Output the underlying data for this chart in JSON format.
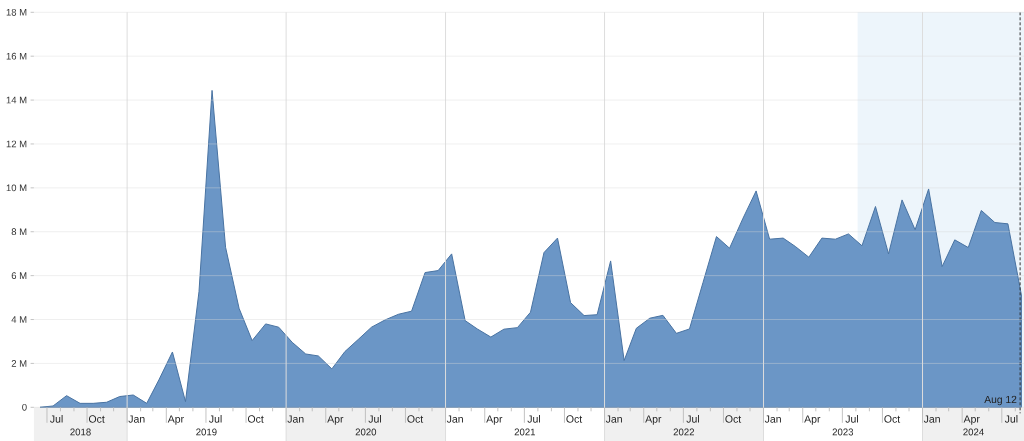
{
  "chart_data": {
    "type": "area",
    "color": "#6b96c6",
    "x": [
      "2018-06-15",
      "2018-07-15",
      "2018-08-15",
      "2018-09-15",
      "2018-10-15",
      "2018-11-15",
      "2018-12-15",
      "2019-01-15",
      "2019-02-15",
      "2019-03-15",
      "2019-04-15",
      "2019-05-15",
      "2019-06-15",
      "2019-07-15",
      "2019-08-15",
      "2019-09-15",
      "2019-10-15",
      "2019-11-15",
      "2019-12-15",
      "2020-01-15",
      "2020-02-15",
      "2020-03-15",
      "2020-04-15",
      "2020-05-15",
      "2020-06-15",
      "2020-07-15",
      "2020-08-15",
      "2020-09-15",
      "2020-10-15",
      "2020-11-15",
      "2020-12-15",
      "2021-01-15",
      "2021-02-15",
      "2021-03-15",
      "2021-04-15",
      "2021-05-15",
      "2021-06-15",
      "2021-07-15",
      "2021-08-15",
      "2021-09-15",
      "2021-10-15",
      "2021-11-15",
      "2021-12-15",
      "2022-01-15",
      "2022-02-15",
      "2022-03-15",
      "2022-04-15",
      "2022-05-15",
      "2022-06-15",
      "2022-07-15",
      "2022-08-15",
      "2022-09-15",
      "2022-10-15",
      "2022-11-15",
      "2022-12-15",
      "2023-01-15",
      "2023-02-15",
      "2023-03-15",
      "2023-04-15",
      "2023-05-15",
      "2023-06-15",
      "2023-07-15",
      "2023-08-15",
      "2023-09-15",
      "2023-10-15",
      "2023-11-15",
      "2023-12-15",
      "2024-01-15",
      "2024-02-15",
      "2024-03-15",
      "2024-04-15",
      "2024-05-15",
      "2024-06-15",
      "2024-07-15",
      "2024-08-15"
    ],
    "values": [
      0,
      0.06,
      0.53,
      0.18,
      0.18,
      0.23,
      0.49,
      0.56,
      0.18,
      1.25,
      2.52,
      0.26,
      5.27,
      14.44,
      7.29,
      4.51,
      3.04,
      3.8,
      3.65,
      2.96,
      2.43,
      2.34,
      1.75,
      2.54,
      3.1,
      3.65,
      3.98,
      4.24,
      4.38,
      6.14,
      6.23,
      6.99,
      3.95,
      3.57,
      3.2,
      3.56,
      3.63,
      4.33,
      7.05,
      7.71,
      4.77,
      4.18,
      4.22,
      6.67,
      2.13,
      3.6,
      4.06,
      4.19,
      3.37,
      3.57,
      5.68,
      7.78,
      7.25,
      8.62,
      9.86,
      7.66,
      7.71,
      7.33,
      6.84,
      7.71,
      7.66,
      7.9,
      7.36,
      9.15,
      6.99,
      9.45,
      8.09,
      9.95,
      6.41,
      7.63,
      7.28,
      8.97,
      8.42,
      8.36,
      5.12
    ],
    "xlim": [
      "2018-06-01",
      "2024-08-21"
    ],
    "xticks": [
      {
        "value": "2018-07-01",
        "label": null
      },
      {
        "value": "2018-07-23",
        "label": "Jul"
      },
      {
        "value": "2018-08-01",
        "label": null
      },
      {
        "value": "2018-09-01",
        "label": null
      },
      {
        "value": "2018-10-01",
        "label": null
      },
      {
        "value": "2018-10-23",
        "label": "Oct"
      },
      {
        "value": "2018-11-01",
        "label": null
      },
      {
        "value": "2018-12-01",
        "label": null
      },
      {
        "value": "2019-01-01",
        "label": null
      },
      {
        "value": "2019-01-23",
        "label": "Jan"
      },
      {
        "value": "2019-02-01",
        "label": null
      },
      {
        "value": "2019-03-01",
        "label": null
      },
      {
        "value": "2019-04-01",
        "label": null
      },
      {
        "value": "2019-04-23",
        "label": "Apr"
      },
      {
        "value": "2019-05-01",
        "label": null
      },
      {
        "value": "2019-06-01",
        "label": null
      },
      {
        "value": "2019-07-01",
        "label": null
      },
      {
        "value": "2019-07-23",
        "label": "Jul"
      },
      {
        "value": "2019-08-01",
        "label": null
      },
      {
        "value": "2019-09-01",
        "label": null
      },
      {
        "value": "2019-10-01",
        "label": null
      },
      {
        "value": "2019-10-23",
        "label": "Oct"
      },
      {
        "value": "2019-11-01",
        "label": null
      },
      {
        "value": "2019-12-01",
        "label": null
      },
      {
        "value": "2020-01-01",
        "label": null
      },
      {
        "value": "2020-01-23",
        "label": "Jan"
      },
      {
        "value": "2020-02-01",
        "label": null
      },
      {
        "value": "2020-03-01",
        "label": null
      },
      {
        "value": "2020-04-01",
        "label": null
      },
      {
        "value": "2020-04-23",
        "label": "Apr"
      },
      {
        "value": "2020-05-01",
        "label": null
      },
      {
        "value": "2020-06-01",
        "label": null
      },
      {
        "value": "2020-07-01",
        "label": null
      },
      {
        "value": "2020-07-23",
        "label": "Jul"
      },
      {
        "value": "2020-08-01",
        "label": null
      },
      {
        "value": "2020-09-01",
        "label": null
      },
      {
        "value": "2020-10-01",
        "label": null
      },
      {
        "value": "2020-10-23",
        "label": "Oct"
      },
      {
        "value": "2020-11-01",
        "label": null
      },
      {
        "value": "2020-12-01",
        "label": null
      },
      {
        "value": "2021-01-01",
        "label": null
      },
      {
        "value": "2021-01-23",
        "label": "Jan"
      },
      {
        "value": "2021-02-01",
        "label": null
      },
      {
        "value": "2021-03-01",
        "label": null
      },
      {
        "value": "2021-04-01",
        "label": null
      },
      {
        "value": "2021-04-23",
        "label": "Apr"
      },
      {
        "value": "2021-05-01",
        "label": null
      },
      {
        "value": "2021-06-01",
        "label": null
      },
      {
        "value": "2021-07-01",
        "label": null
      },
      {
        "value": "2021-07-23",
        "label": "Jul"
      },
      {
        "value": "2021-08-01",
        "label": null
      },
      {
        "value": "2021-09-01",
        "label": null
      },
      {
        "value": "2021-10-01",
        "label": null
      },
      {
        "value": "2021-10-23",
        "label": "Oct"
      },
      {
        "value": "2021-11-01",
        "label": null
      },
      {
        "value": "2021-12-01",
        "label": null
      },
      {
        "value": "2022-01-01",
        "label": null
      },
      {
        "value": "2022-01-23",
        "label": "Jan"
      },
      {
        "value": "2022-02-01",
        "label": null
      },
      {
        "value": "2022-03-01",
        "label": null
      },
      {
        "value": "2022-04-01",
        "label": null
      },
      {
        "value": "2022-04-23",
        "label": "Apr"
      },
      {
        "value": "2022-05-01",
        "label": null
      },
      {
        "value": "2022-06-01",
        "label": null
      },
      {
        "value": "2022-07-01",
        "label": null
      },
      {
        "value": "2022-07-23",
        "label": "Jul"
      },
      {
        "value": "2022-08-01",
        "label": null
      },
      {
        "value": "2022-09-01",
        "label": null
      },
      {
        "value": "2022-10-01",
        "label": null
      },
      {
        "value": "2022-10-23",
        "label": "Oct"
      },
      {
        "value": "2022-11-01",
        "label": null
      },
      {
        "value": "2022-12-01",
        "label": null
      },
      {
        "value": "2023-01-01",
        "label": null
      },
      {
        "value": "2023-01-23",
        "label": "Jan"
      },
      {
        "value": "2023-02-01",
        "label": null
      },
      {
        "value": "2023-03-01",
        "label": null
      },
      {
        "value": "2023-04-01",
        "label": null
      },
      {
        "value": "2023-04-23",
        "label": "Apr"
      },
      {
        "value": "2023-05-01",
        "label": null
      },
      {
        "value": "2023-06-01",
        "label": null
      },
      {
        "value": "2023-07-01",
        "label": null
      },
      {
        "value": "2023-07-23",
        "label": "Jul"
      },
      {
        "value": "2023-08-01",
        "label": null
      },
      {
        "value": "2023-09-01",
        "label": null
      },
      {
        "value": "2023-10-01",
        "label": null
      },
      {
        "value": "2023-10-23",
        "label": "Oct"
      },
      {
        "value": "2023-11-01",
        "label": null
      },
      {
        "value": "2023-12-01",
        "label": null
      },
      {
        "value": "2024-01-01",
        "label": null
      },
      {
        "value": "2024-01-23",
        "label": "Jan"
      },
      {
        "value": "2024-02-01",
        "label": null
      },
      {
        "value": "2024-03-01",
        "label": null
      },
      {
        "value": "2024-04-01",
        "label": null
      },
      {
        "value": "2024-04-23",
        "label": "Apr"
      },
      {
        "value": "2024-05-01",
        "label": null
      },
      {
        "value": "2024-06-01",
        "label": null
      },
      {
        "value": "2024-07-01",
        "label": null
      },
      {
        "value": "2024-07-23",
        "label": "Jul"
      },
      {
        "value": "2024-08-01",
        "label": null
      }
    ],
    "x2lim": [
      "2018-06-01",
      "2024-08-21"
    ],
    "x2ticks": [
      {
        "value": "2018-09-16",
        "label": "2018"
      },
      {
        "value": "2019-07-02",
        "label": "2019"
      },
      {
        "value": "2020-07-02",
        "label": "2020"
      },
      {
        "value": "2021-07-02",
        "label": "2021"
      },
      {
        "value": "2022-07-02",
        "label": "2022"
      },
      {
        "value": "2023-07-02",
        "label": "2023"
      },
      {
        "value": "2024-04-27",
        "label": "2024"
      }
    ],
    "ylim": [
      0,
      18
    ],
    "yticks": [
      0,
      {
        "value": 2,
        "label": "2 M"
      },
      {
        "value": 4,
        "label": "4 M"
      },
      {
        "value": 6,
        "label": "6 M"
      },
      {
        "value": 8,
        "label": "8 M"
      },
      {
        "value": 10,
        "label": "10 M"
      },
      {
        "value": 12,
        "label": "12 M"
      },
      {
        "value": 14,
        "label": "14 M"
      },
      {
        "value": 16,
        "label": "16 M"
      },
      {
        "value": 18,
        "label": "18 M"
      }
    ],
    "grid": "y",
    "ref_lines": [
      {
        "axis": "x",
        "value": "2019-01-01",
        "color": "#dddddd"
      },
      {
        "axis": "x",
        "value": "2020-01-01",
        "color": "#dddddd"
      },
      {
        "axis": "x",
        "value": "2021-01-01",
        "color": "#dddddd"
      },
      {
        "axis": "x",
        "value": "2022-01-01",
        "color": "#dddddd"
      },
      {
        "axis": "x",
        "value": "2023-01-01",
        "color": "#dddddd"
      },
      {
        "axis": "x",
        "value": "2024-01-01",
        "color": "#dddddd"
      },
      {
        "axis": "x",
        "value": "2024-08-12",
        "label": "Aug 12",
        "color": "#333333",
        "line_style": "dashed"
      }
    ],
    "bands": [
      {
        "axis": "x",
        "from": "2023-08-05",
        "to": "2024-08-21",
        "color": "#edf5fb"
      }
    ]
  }
}
